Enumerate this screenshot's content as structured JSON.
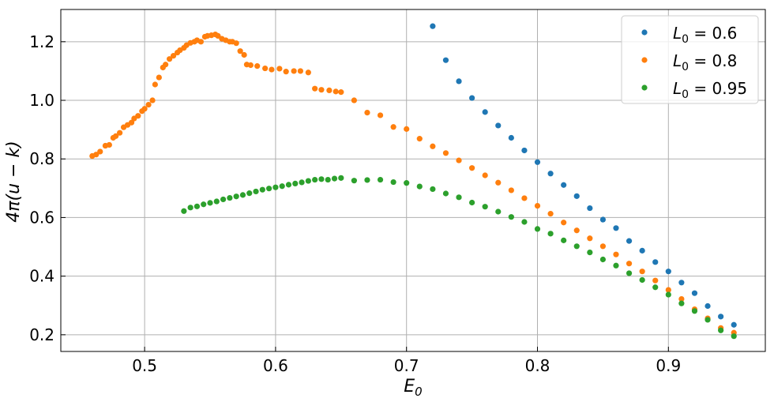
{
  "chart_data": {
    "type": "scatter",
    "xlabel": "E",
    "xlabel_sub": "0",
    "ylabel": "4π(u − k)",
    "xlim": [
      0.436,
      0.974
    ],
    "ylim": [
      0.143,
      1.31
    ],
    "xticks": [
      0.5,
      0.6,
      0.7,
      0.8,
      0.9
    ],
    "xtick_labels": [
      "0.5",
      "0.6",
      "0.7",
      "0.8",
      "0.9"
    ],
    "yticks": [
      0.2,
      0.4,
      0.6,
      0.8,
      1.0,
      1.2
    ],
    "ytick_labels": [
      "0.2",
      "0.4",
      "0.6",
      "0.8",
      "1.0",
      "1.2"
    ],
    "grid": true,
    "legend_position": "top-right",
    "series": [
      {
        "name": "L",
        "name_sub": "0",
        "name_value": " = 0.6",
        "color": "#1f77b4",
        "x": [
          0.72,
          0.73,
          0.74,
          0.75,
          0.76,
          0.77,
          0.78,
          0.79,
          0.8,
          0.81,
          0.82,
          0.83,
          0.84,
          0.85,
          0.86,
          0.87,
          0.88,
          0.89,
          0.9,
          0.91,
          0.92,
          0.93,
          0.94,
          0.95
        ],
        "y": [
          1.253,
          1.137,
          1.065,
          1.008,
          0.96,
          0.914,
          0.872,
          0.829,
          0.789,
          0.75,
          0.711,
          0.673,
          0.632,
          0.593,
          0.564,
          0.52,
          0.487,
          0.448,
          0.416,
          0.378,
          0.342,
          0.298,
          0.262,
          0.234
        ]
      },
      {
        "name": "L",
        "name_sub": "0",
        "name_value": " = 0.8",
        "color": "#ff7f0e",
        "x": [
          0.46,
          0.463,
          0.466,
          0.47,
          0.473,
          0.476,
          0.478,
          0.481,
          0.484,
          0.487,
          0.49,
          0.492,
          0.495,
          0.498,
          0.5,
          0.503,
          0.506,
          0.508,
          0.511,
          0.514,
          0.516,
          0.519,
          0.522,
          0.525,
          0.527,
          0.53,
          0.532,
          0.535,
          0.538,
          0.54,
          0.543,
          0.546,
          0.548,
          0.551,
          0.554,
          0.556,
          0.559,
          0.562,
          0.565,
          0.567,
          0.57,
          0.573,
          0.576,
          0.578,
          0.581,
          0.586,
          0.592,
          0.597,
          0.603,
          0.608,
          0.614,
          0.619,
          0.625,
          0.63,
          0.635,
          0.641,
          0.646,
          0.65,
          0.66,
          0.67,
          0.68,
          0.69,
          0.7,
          0.71,
          0.72,
          0.73,
          0.74,
          0.75,
          0.76,
          0.77,
          0.78,
          0.79,
          0.8,
          0.81,
          0.82,
          0.83,
          0.84,
          0.85,
          0.86,
          0.87,
          0.88,
          0.89,
          0.9,
          0.91,
          0.92,
          0.93,
          0.94,
          0.95
        ],
        "y": [
          0.81,
          0.815,
          0.825,
          0.845,
          0.848,
          0.872,
          0.878,
          0.889,
          0.908,
          0.916,
          0.924,
          0.938,
          0.947,
          0.963,
          0.971,
          0.985,
          1.0,
          1.054,
          1.078,
          1.112,
          1.122,
          1.141,
          1.152,
          1.163,
          1.171,
          1.179,
          1.188,
          1.196,
          1.2,
          1.205,
          1.2,
          1.217,
          1.22,
          1.222,
          1.225,
          1.22,
          1.21,
          1.205,
          1.2,
          1.2,
          1.195,
          1.168,
          1.155,
          1.122,
          1.12,
          1.117,
          1.109,
          1.105,
          1.108,
          1.098,
          1.1,
          1.1,
          1.095,
          1.04,
          1.036,
          1.034,
          1.03,
          1.028,
          1.0,
          0.958,
          0.949,
          0.909,
          0.902,
          0.869,
          0.843,
          0.82,
          0.795,
          0.769,
          0.744,
          0.719,
          0.693,
          0.666,
          0.64,
          0.613,
          0.583,
          0.556,
          0.529,
          0.502,
          0.474,
          0.443,
          0.416,
          0.385,
          0.353,
          0.322,
          0.287,
          0.256,
          0.223,
          0.207
        ]
      },
      {
        "name": "L",
        "name_sub": "0",
        "name_value": " = 0.95",
        "color": "#2ca02c",
        "x": [
          0.53,
          0.535,
          0.54,
          0.545,
          0.55,
          0.555,
          0.56,
          0.565,
          0.57,
          0.575,
          0.58,
          0.585,
          0.59,
          0.595,
          0.6,
          0.605,
          0.61,
          0.615,
          0.62,
          0.625,
          0.63,
          0.635,
          0.64,
          0.645,
          0.65,
          0.66,
          0.67,
          0.68,
          0.69,
          0.7,
          0.71,
          0.72,
          0.73,
          0.74,
          0.75,
          0.76,
          0.77,
          0.78,
          0.79,
          0.8,
          0.81,
          0.82,
          0.83,
          0.84,
          0.85,
          0.86,
          0.87,
          0.88,
          0.89,
          0.9,
          0.91,
          0.92,
          0.93,
          0.94,
          0.95
        ],
        "y": [
          0.622,
          0.634,
          0.638,
          0.645,
          0.65,
          0.655,
          0.662,
          0.667,
          0.672,
          0.677,
          0.683,
          0.689,
          0.695,
          0.699,
          0.703,
          0.707,
          0.712,
          0.716,
          0.72,
          0.725,
          0.729,
          0.731,
          0.729,
          0.733,
          0.735,
          0.726,
          0.728,
          0.729,
          0.721,
          0.718,
          0.706,
          0.697,
          0.682,
          0.669,
          0.651,
          0.637,
          0.62,
          0.602,
          0.585,
          0.561,
          0.545,
          0.522,
          0.502,
          0.481,
          0.457,
          0.436,
          0.41,
          0.387,
          0.362,
          0.337,
          0.307,
          0.281,
          0.251,
          0.215,
          0.195
        ]
      }
    ]
  }
}
